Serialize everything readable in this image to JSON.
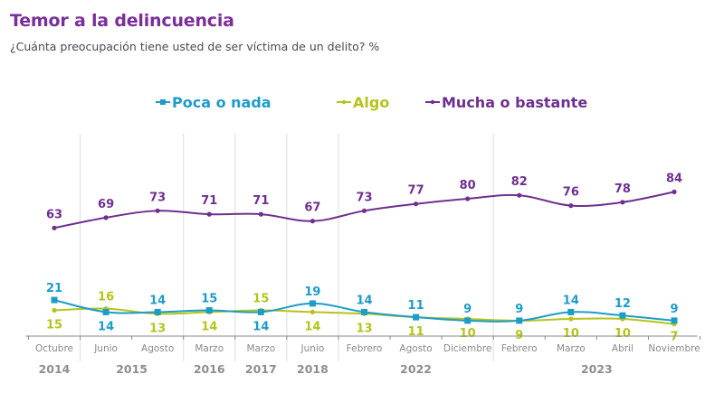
{
  "header": {
    "title": "Temor a la delincuencia",
    "subtitle": "¿Cuánta preocupación tiene usted de ser víctima de un delito? %"
  },
  "chart_data": {
    "type": "line",
    "title": "Temor a la delincuencia",
    "subtitle": "¿Cuánta preocupación tiene usted de ser víctima de un delito? %",
    "xlabel": "",
    "ylabel": "%",
    "ylim": [
      0,
      100
    ],
    "grid": "vertical separators between years",
    "legend_position": "top-center",
    "categories": [
      "Octubre",
      "Junio",
      "Agosto",
      "Marzo",
      "Marzo",
      "Junio",
      "Febrero",
      "Agosto",
      "Diciembre",
      "Febrero",
      "Marzo",
      "Abril",
      "Noviembre"
    ],
    "year_groups": [
      {
        "label": "2014",
        "start": 0,
        "end": 0
      },
      {
        "label": "2015",
        "start": 1,
        "end": 2
      },
      {
        "label": "2016",
        "start": 3,
        "end": 3
      },
      {
        "label": "2017",
        "start": 4,
        "end": 4
      },
      {
        "label": "2018",
        "start": 5,
        "end": 5
      },
      {
        "label": "2022",
        "start": 6,
        "end": 8
      },
      {
        "label": "2023",
        "start": 9,
        "end": 12
      }
    ],
    "series": [
      {
        "name": "Poca o nada",
        "color": "#1e9cc8",
        "marker": "square",
        "label_pos": [
          -1,
          1,
          -1,
          -1,
          1,
          -1,
          -1,
          -1,
          -1,
          -1,
          -1,
          -1,
          -1
        ],
        "values": [
          21,
          14,
          14,
          15,
          14,
          19,
          14,
          11,
          9,
          9,
          14,
          12,
          9
        ]
      },
      {
        "name": "Algo",
        "color": "#b5c41a",
        "marker": "dot",
        "label_pos": [
          1,
          -1,
          1,
          1,
          -1,
          1,
          1,
          1,
          1,
          1,
          1,
          1,
          1
        ],
        "values": [
          15,
          16,
          13,
          14,
          15,
          14,
          13,
          11,
          10,
          9,
          10,
          10,
          7
        ]
      },
      {
        "name": "Mucha o bastante",
        "color": "#6e2f8f",
        "marker": "dot",
        "label_pos": [
          -1,
          -1,
          -1,
          -1,
          -1,
          -1,
          -1,
          -1,
          -1,
          -1,
          -1,
          -1,
          -1
        ],
        "values": [
          63,
          69,
          73,
          71,
          71,
          67,
          73,
          77,
          80,
          82,
          76,
          78,
          84
        ]
      }
    ]
  }
}
